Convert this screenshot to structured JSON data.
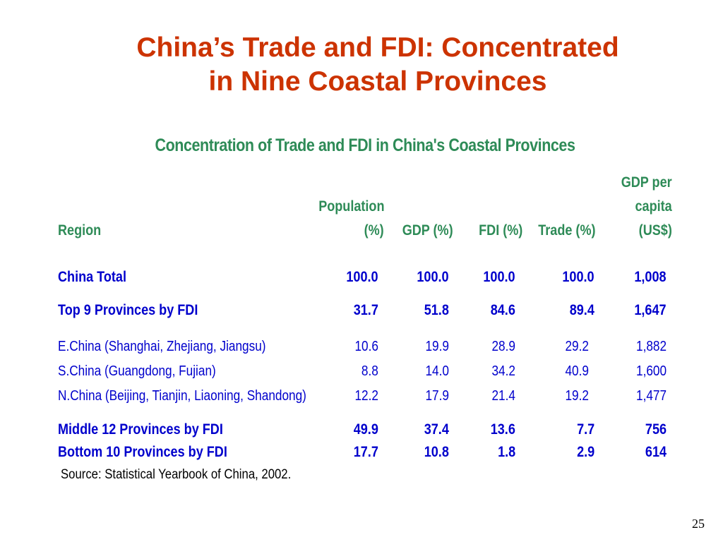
{
  "slide": {
    "title_line1": "China’s Trade and FDI: Concentrated",
    "title_line2": "in Nine Coastal Provinces",
    "table_title": "Concentration of Trade and FDI in China's Coastal Provinces",
    "page_number": "25"
  },
  "table": {
    "headers": {
      "region": "Region",
      "population_line1": "Population",
      "population_line2": "(%)",
      "gdp": "GDP (%)",
      "fdi": "FDI (%)",
      "trade": "Trade (%)",
      "gdppc_line1": "GDP per",
      "gdppc_line2": "capita",
      "gdppc_line3": "(US$)"
    },
    "rows": [
      {
        "region": "China Total",
        "population": "100.0",
        "gdp": "100.0",
        "fdi": "100.0",
        "trade": "100.0",
        "gdp_per_capita": "1,008"
      },
      {
        "region": "Top 9 Provinces by FDI",
        "population": "31.7",
        "gdp": "51.8",
        "fdi": "84.6",
        "trade": "89.4",
        "gdp_per_capita": "1,647"
      },
      {
        "region": "E.China (Shanghai, Zhejiang, Jiangsu)",
        "population": "10.6",
        "gdp": "19.9",
        "fdi": "28.9",
        "trade": "29.2",
        "gdp_per_capita": "1,882"
      },
      {
        "region": "S.China (Guangdong, Fujian)",
        "population": "8.8",
        "gdp": "14.0",
        "fdi": "34.2",
        "trade": "40.9",
        "gdp_per_capita": "1,600"
      },
      {
        "region": "N.China (Beijing, Tianjin, Liaoning, Shandong)",
        "population": "12.2",
        "gdp": "17.9",
        "fdi": "21.4",
        "trade": "19.2",
        "gdp_per_capita": "1,477"
      },
      {
        "region": "Middle 12 Provinces by FDI",
        "population": "49.9",
        "gdp": "37.4",
        "fdi": "13.6",
        "trade": "7.7",
        "gdp_per_capita": "756"
      },
      {
        "region": "Bottom 10 Provinces by FDI",
        "population": "17.7",
        "gdp": "10.8",
        "fdi": "1.8",
        "trade": "2.9",
        "gdp_per_capita": "614"
      }
    ],
    "source": "Source: Statistical Yearbook of China, 2002."
  }
}
